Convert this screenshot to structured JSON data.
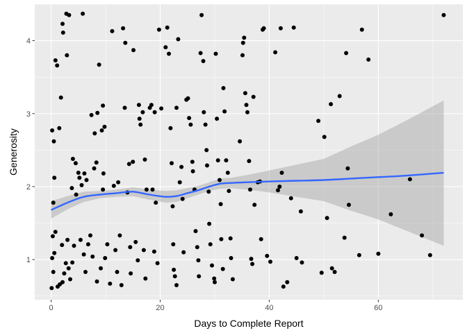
{
  "chart_data": {
    "type": "scatter",
    "title": "",
    "xlabel": "Days to Complete Report",
    "ylabel": "Generosity",
    "xlim": [
      -3,
      75.5
    ],
    "ylim": [
      0.45,
      4.5
    ],
    "x_ticks": [
      0,
      20,
      40,
      60
    ],
    "x_tick_labels": [
      "0",
      "20",
      "40",
      "60"
    ],
    "y_ticks": [
      1,
      2,
      3,
      4
    ],
    "y_tick_labels": [
      "1",
      "2",
      "3",
      "4"
    ],
    "grid": true,
    "legend": "none",
    "colors": {
      "panel": "#ebebeb",
      "grid_major": "#ffffff",
      "points": "#000000",
      "smooth_line": "#3366ff",
      "ribbon": "#999999"
    },
    "series": [
      {
        "kind": "points",
        "points": [
          [
            0.1,
            0.61
          ],
          [
            0.4,
            0.83
          ],
          [
            0.2,
            1.02
          ],
          [
            0.6,
            1.09
          ],
          [
            0.3,
            1.32
          ],
          [
            0.8,
            1.38
          ],
          [
            0.2,
            2.77
          ],
          [
            0.5,
            2.62
          ],
          [
            0.8,
            3.73
          ],
          [
            1.1,
            3.66
          ],
          [
            1.5,
            2.8
          ],
          [
            1.8,
            3.22
          ],
          [
            0.4,
            1.78
          ],
          [
            0.6,
            2.12
          ],
          [
            1.2,
            0.63
          ],
          [
            1.6,
            0.66
          ],
          [
            2.1,
            0.69
          ],
          [
            2.4,
            0.81
          ],
          [
            2.7,
            0.95
          ],
          [
            2.0,
            1.2
          ],
          [
            3.0,
            1.27
          ],
          [
            3.2,
            0.88
          ],
          [
            3.5,
            0.73
          ],
          [
            3.9,
            0.96
          ],
          [
            4.2,
            1.19
          ],
          [
            2.2,
            4.11
          ],
          [
            2.1,
            4.23
          ],
          [
            2.8,
            4.37
          ],
          [
            3.3,
            4.35
          ],
          [
            2.9,
            3.8
          ],
          [
            4.0,
            2.38
          ],
          [
            4.5,
            2.32
          ],
          [
            5.0,
            2.19
          ],
          [
            3.8,
            1.98
          ],
          [
            4.6,
            1.89
          ],
          [
            5.2,
            2.12
          ],
          [
            5.6,
            2.02
          ],
          [
            6.1,
            2.18
          ],
          [
            6.5,
            2.09
          ],
          [
            5.8,
            4.37
          ],
          [
            5.4,
            1.27
          ],
          [
            6.0,
            1.07
          ],
          [
            6.3,
            0.83
          ],
          [
            6.8,
            1.21
          ],
          [
            7.2,
            1.33
          ],
          [
            7.6,
            1.04
          ],
          [
            7.9,
            2.25
          ],
          [
            8.3,
            2.33
          ],
          [
            7.4,
            2.98
          ],
          [
            8.0,
            2.73
          ],
          [
            8.5,
            3.01
          ],
          [
            8.8,
            3.67
          ],
          [
            9.5,
            3.11
          ],
          [
            9.3,
            2.77
          ],
          [
            9.8,
            2.82
          ],
          [
            9.5,
            1.96
          ],
          [
            9.6,
            2.18
          ],
          [
            8.4,
            0.7
          ],
          [
            9.1,
            0.88
          ],
          [
            9.9,
            1.02
          ],
          [
            10.3,
            1.21
          ],
          [
            10.8,
            0.67
          ],
          [
            11.2,
            4.13
          ],
          [
            11.5,
            2.01
          ],
          [
            12.3,
            2.06
          ],
          [
            12.6,
            1.33
          ],
          [
            11.8,
            1.13
          ],
          [
            12.1,
            0.83
          ],
          [
            12.9,
            0.65
          ],
          [
            13.5,
            3.08
          ],
          [
            13.6,
            3.97
          ],
          [
            13.2,
            4.17
          ],
          [
            14.0,
            1.92
          ],
          [
            14.3,
            2.31
          ],
          [
            14.5,
            1.17
          ],
          [
            14.6,
            0.81
          ],
          [
            15.1,
            3.87
          ],
          [
            15.0,
            2.34
          ],
          [
            15.5,
            1.24
          ],
          [
            15.9,
            0.99
          ],
          [
            16.1,
            3.12
          ],
          [
            16.2,
            2.93
          ],
          [
            16.4,
            2.85
          ],
          [
            16.8,
            3.02
          ],
          [
            17.2,
            2.37
          ],
          [
            17.5,
            1.96
          ],
          [
            17.0,
            1.13
          ],
          [
            17.3,
            0.74
          ],
          [
            18.1,
            3.08
          ],
          [
            18.4,
            3.12
          ],
          [
            19.0,
            3.02
          ],
          [
            18.6,
            1.96
          ],
          [
            19.2,
            1.78
          ],
          [
            18.9,
            1.11
          ],
          [
            19.5,
            0.95
          ],
          [
            19.8,
            4.15
          ],
          [
            20.2,
            3.07
          ],
          [
            21.0,
            3.91
          ],
          [
            21.3,
            4.18
          ],
          [
            21.6,
            3.82
          ],
          [
            21.9,
            2.8
          ],
          [
            22.1,
            2.32
          ],
          [
            22.3,
            1.73
          ],
          [
            22.4,
            1.21
          ],
          [
            22.5,
            0.86
          ],
          [
            22.7,
            0.77
          ],
          [
            23.0,
            0.65
          ],
          [
            23.3,
            4.02
          ],
          [
            23.0,
            3.08
          ],
          [
            23.6,
            2.06
          ],
          [
            23.9,
            2.27
          ],
          [
            24.1,
            1.83
          ],
          [
            24.3,
            1.1
          ],
          [
            24.8,
            3.19
          ],
          [
            25.1,
            3.21
          ],
          [
            25.3,
            2.94
          ],
          [
            25.6,
            2.85
          ],
          [
            25.9,
            2.34
          ],
          [
            26.0,
            2.21
          ],
          [
            26.3,
            1.96
          ],
          [
            26.5,
            1.39
          ],
          [
            26.8,
            1.17
          ],
          [
            27.0,
            0.99
          ],
          [
            27.1,
            0.77
          ],
          [
            27.4,
            3.83
          ],
          [
            27.6,
            4.35
          ],
          [
            27.9,
            3.72
          ],
          [
            28.0,
            3.02
          ],
          [
            28.3,
            2.85
          ],
          [
            28.5,
            2.5
          ],
          [
            28.6,
            2.29
          ],
          [
            28.9,
            1.93
          ],
          [
            29.0,
            1.49
          ],
          [
            29.2,
            1.21
          ],
          [
            29.5,
            0.92
          ],
          [
            29.9,
            0.74
          ],
          [
            30.0,
            0.69
          ],
          [
            30.2,
            3.82
          ],
          [
            30.4,
            2.93
          ],
          [
            30.6,
            2.36
          ],
          [
            30.9,
            2.09
          ],
          [
            31.1,
            1.76
          ],
          [
            31.2,
            1.28
          ],
          [
            31.5,
            0.87
          ],
          [
            31.6,
            3.35
          ],
          [
            31.8,
            3.03
          ],
          [
            32.1,
            2.36
          ],
          [
            32.4,
            2.19
          ],
          [
            32.6,
            1.94
          ],
          [
            32.9,
            1.29
          ],
          [
            33.0,
            1.02
          ],
          [
            33.3,
            0.73
          ],
          [
            34.6,
            2.62
          ],
          [
            35.1,
            3.8
          ],
          [
            35.2,
            3.97
          ],
          [
            35.4,
            4.04
          ],
          [
            35.6,
            3.28
          ],
          [
            35.8,
            3.12
          ],
          [
            36.0,
            3.02
          ],
          [
            36.3,
            2.35
          ],
          [
            36.5,
            1.96
          ],
          [
            36.7,
            1.01
          ],
          [
            36.9,
            0.94
          ],
          [
            37.1,
            3.23
          ],
          [
            37.3,
            1.75
          ],
          [
            37.9,
            2.06
          ],
          [
            38.3,
            2.07
          ],
          [
            38.5,
            1.28
          ],
          [
            38.8,
            4.15
          ],
          [
            39.0,
            4.17
          ],
          [
            39.6,
            1.05
          ],
          [
            40.2,
            0.97
          ],
          [
            41.1,
            3.84
          ],
          [
            41.6,
            1.95
          ],
          [
            41.9,
            2.0
          ],
          [
            42.1,
            4.17
          ],
          [
            42.3,
            2.19
          ],
          [
            42.6,
            0.63
          ],
          [
            43.3,
            0.69
          ],
          [
            44.0,
            1.84
          ],
          [
            44.5,
            4.18
          ],
          [
            45.0,
            1.02
          ],
          [
            45.8,
            1.66
          ],
          [
            46.0,
            0.96
          ],
          [
            49.0,
            2.9
          ],
          [
            49.6,
            0.82
          ],
          [
            50.1,
            2.68
          ],
          [
            50.6,
            1.57
          ],
          [
            51.3,
            3.13
          ],
          [
            51.5,
            0.88
          ],
          [
            52.0,
            0.83
          ],
          [
            52.9,
            3.24
          ],
          [
            53.8,
            1.3
          ],
          [
            54.1,
            3.83
          ],
          [
            54.4,
            2.25
          ],
          [
            54.6,
            1.75
          ],
          [
            56.5,
            1.06
          ],
          [
            57.0,
            4.15
          ],
          [
            58.2,
            3.74
          ],
          [
            60.0,
            1.08
          ],
          [
            62.3,
            1.62
          ],
          [
            65.8,
            2.1
          ],
          [
            68.0,
            1.33
          ],
          [
            69.5,
            1.06
          ],
          [
            72.0,
            4.35
          ]
        ]
      },
      {
        "kind": "smooth",
        "x": [
          0,
          3,
          6,
          9,
          12,
          15,
          18,
          21,
          23,
          25,
          27,
          29,
          31,
          33,
          36,
          40,
          45,
          50,
          55,
          60,
          65,
          72
        ],
        "y": [
          1.68,
          1.78,
          1.86,
          1.89,
          1.91,
          1.93,
          1.89,
          1.86,
          1.87,
          1.91,
          1.95,
          2.0,
          2.04,
          2.05,
          2.06,
          2.07,
          2.08,
          2.09,
          2.11,
          2.13,
          2.15,
          2.19
        ],
        "ymin": [
          1.56,
          1.69,
          1.79,
          1.84,
          1.86,
          1.87,
          1.82,
          1.78,
          1.79,
          1.84,
          1.89,
          1.94,
          1.97,
          1.98,
          1.96,
          1.92,
          1.86,
          1.8,
          1.67,
          1.55,
          1.4,
          1.19
        ],
        "ymax": [
          1.8,
          1.87,
          1.93,
          1.94,
          1.96,
          1.99,
          1.96,
          1.94,
          1.95,
          1.98,
          2.01,
          2.06,
          2.11,
          2.12,
          2.16,
          2.22,
          2.3,
          2.38,
          2.55,
          2.71,
          2.9,
          3.18
        ]
      }
    ]
  }
}
